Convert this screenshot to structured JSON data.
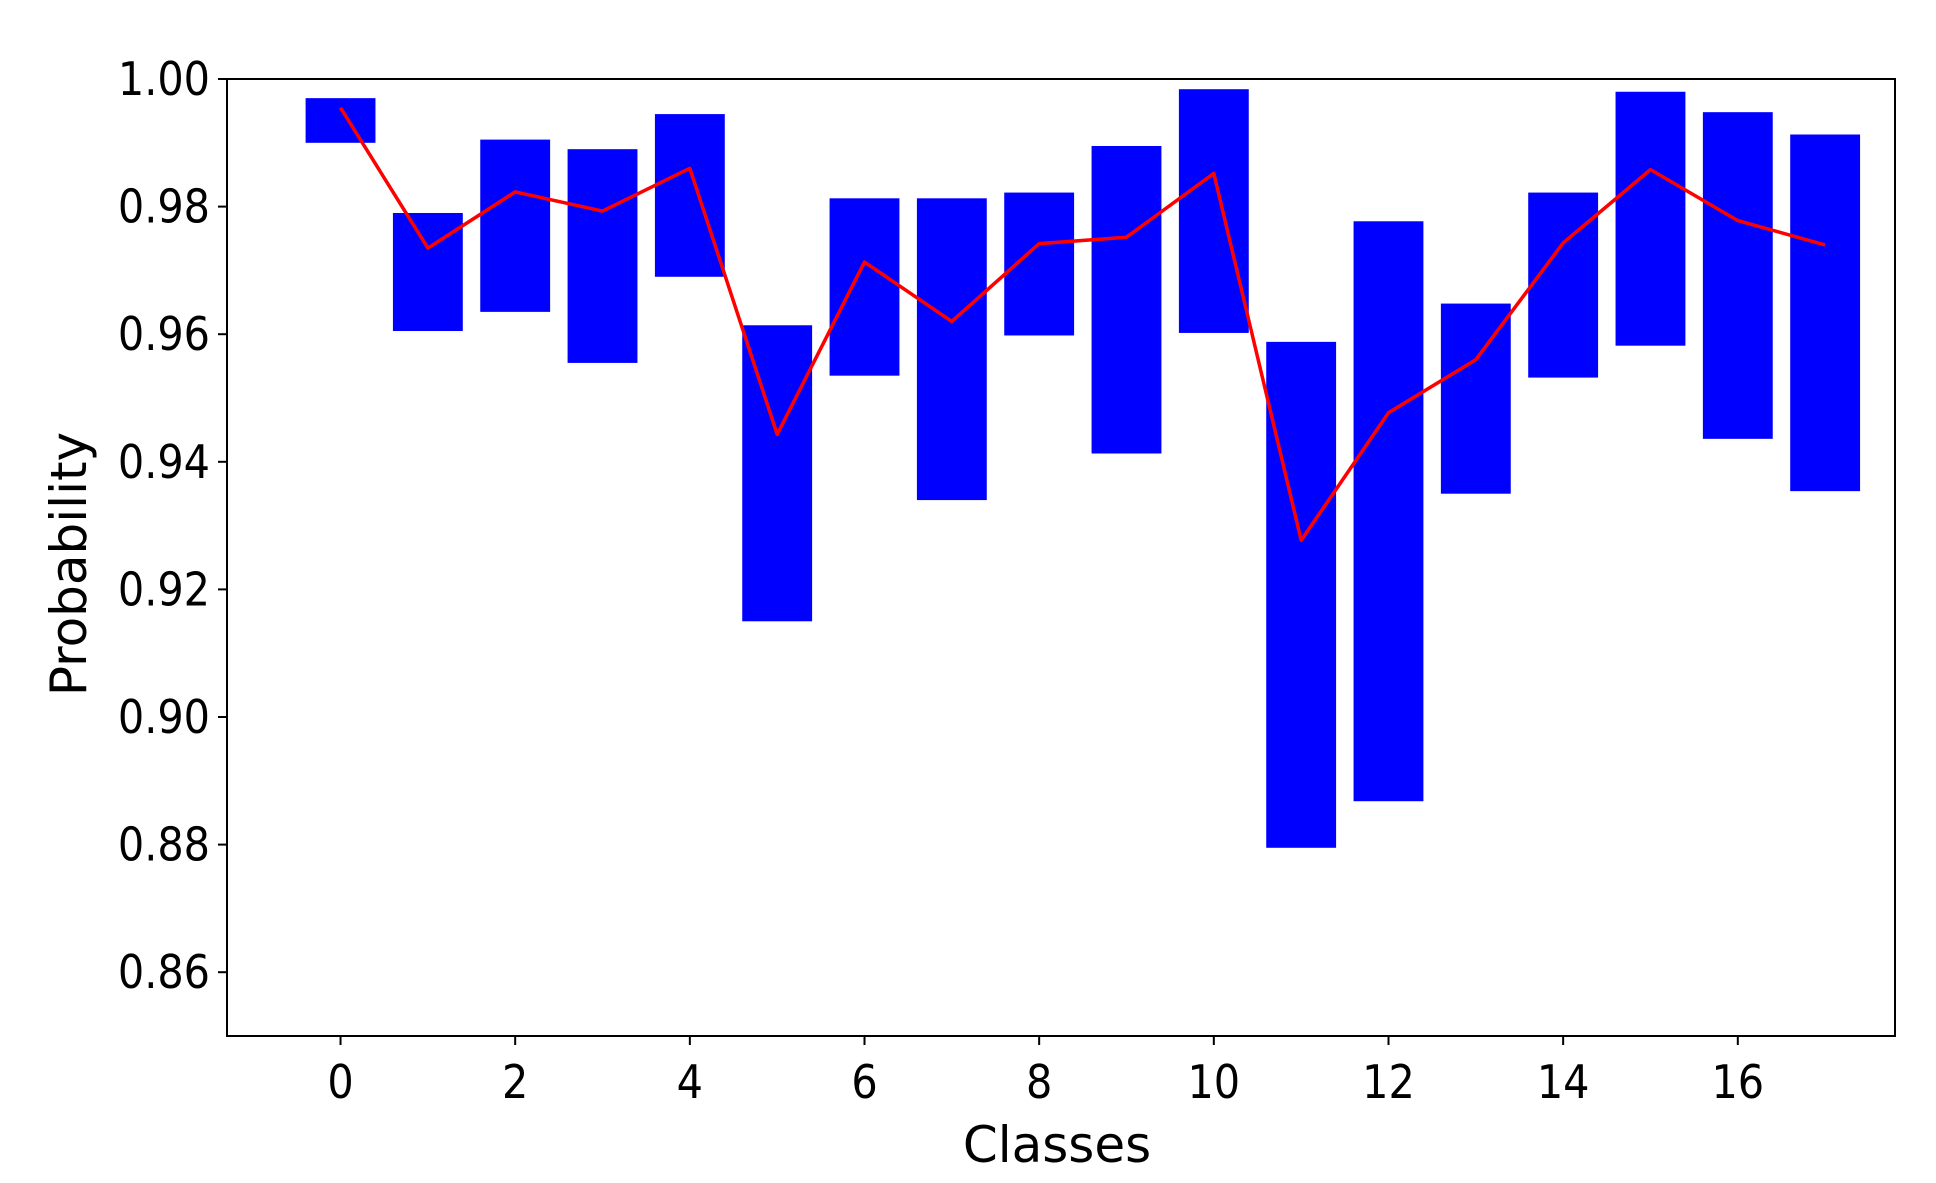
{
  "chart_data": {
    "type": "bar",
    "xlabel": "Classes",
    "ylabel": "Probability",
    "xlim": [
      -1.3,
      17.8
    ],
    "ylim": [
      0.85,
      1.0
    ],
    "x_ticks": [
      0,
      2,
      4,
      6,
      8,
      10,
      12,
      14,
      16
    ],
    "y_ticks": [
      0.86,
      0.88,
      0.9,
      0.92,
      0.94,
      0.96,
      0.98,
      1.0
    ],
    "y_tick_labels": [
      "0.86",
      "0.88",
      "0.90",
      "0.92",
      "0.94",
      "0.96",
      "0.98",
      "1.00"
    ],
    "grid": false,
    "classes": [
      0,
      1,
      2,
      3,
      4,
      5,
      6,
      7,
      8,
      9,
      10,
      11,
      12,
      13,
      14,
      15,
      16,
      17
    ],
    "series": [
      {
        "type": "floating-bar",
        "color": "#0000ff",
        "low": [
          0.99,
          0.9605,
          0.9635,
          0.9555,
          0.969,
          0.915,
          0.9535,
          0.934,
          0.9598,
          0.9413,
          0.9602,
          0.8795,
          0.8868,
          0.935,
          0.9532,
          0.9582,
          0.9436,
          0.9354
        ],
        "high": [
          0.997,
          0.979,
          0.9905,
          0.989,
          0.9945,
          0.9614,
          0.9813,
          0.9813,
          0.9822,
          0.9895,
          0.9984,
          0.9588,
          0.9777,
          0.9648,
          0.9822,
          0.998,
          0.9948,
          0.9913
        ]
      },
      {
        "type": "line",
        "color": "#ff0000",
        "values": [
          0.9955,
          0.9735,
          0.9823,
          0.9793,
          0.986,
          0.9443,
          0.9713,
          0.962,
          0.9742,
          0.9752,
          0.9852,
          0.9277,
          0.9477,
          0.956,
          0.9743,
          0.9858,
          0.9778,
          0.974
        ]
      }
    ]
  }
}
